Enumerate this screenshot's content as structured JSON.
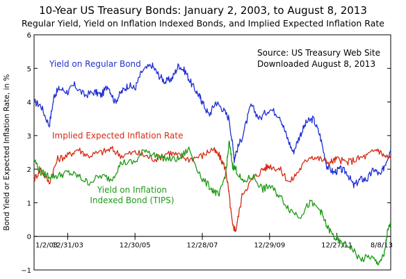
{
  "chart_data": {
    "type": "line",
    "title": "10-Year US Treasury Bonds:  January 2, 2003, to August 8, 2013",
    "subtitle": "Regular Yield, Yield on Inflation Indexed Bonds, and Implied Expected Inflation Rate",
    "ylabel": "Bond Yield or Expected Inflation Rate, in %",
    "xlabel": "",
    "ylim": [
      -1,
      6
    ],
    "yticks": [
      -1,
      0,
      1,
      2,
      3,
      4,
      5,
      6
    ],
    "x_tick_labels": [
      "1/2/03",
      "12/31/03",
      "12/30/05",
      "12/28/07",
      "12/29/09",
      "12/27/11",
      "8/8/13"
    ],
    "x_tick_years": [
      2003.0,
      2004.0,
      2006.0,
      2008.0,
      2010.0,
      2012.0,
      2013.6
    ],
    "xlim": [
      2003.0,
      2013.6
    ],
    "grid": false,
    "source_note": [
      "Source:  US Treasury Web Site",
      "Downloaded August 8, 2013"
    ],
    "series": [
      {
        "name": "Yield on Regular Bond",
        "label_lines": [
          "Yield on Regular Bond"
        ],
        "color": "#1f2fd0",
        "x": [
          2003.0,
          2003.2,
          2003.45,
          2003.6,
          2003.75,
          2004.0,
          2004.2,
          2004.5,
          2004.8,
          2005.0,
          2005.2,
          2005.4,
          2005.6,
          2005.8,
          2006.0,
          2006.2,
          2006.5,
          2006.7,
          2006.9,
          2007.1,
          2007.3,
          2007.5,
          2007.7,
          2007.9,
          2008.0,
          2008.2,
          2008.4,
          2008.6,
          2008.8,
          2008.95,
          2009.0,
          2009.2,
          2009.45,
          2009.7,
          2010.0,
          2010.3,
          2010.5,
          2010.7,
          2010.9,
          2011.1,
          2011.3,
          2011.5,
          2011.7,
          2011.9,
          2012.1,
          2012.3,
          2012.5,
          2012.7,
          2012.9,
          2013.1,
          2013.3,
          2013.45,
          2013.6
        ],
        "values": [
          4.0,
          3.9,
          3.3,
          4.2,
          4.4,
          4.3,
          4.5,
          4.2,
          4.3,
          4.2,
          4.5,
          4.0,
          4.3,
          4.5,
          4.4,
          4.9,
          5.1,
          4.8,
          4.6,
          4.7,
          5.1,
          4.9,
          4.5,
          4.2,
          4.0,
          3.6,
          4.0,
          3.8,
          3.5,
          2.3,
          2.5,
          3.0,
          3.9,
          3.5,
          3.8,
          3.6,
          3.0,
          2.5,
          3.0,
          3.4,
          3.5,
          3.0,
          2.1,
          1.9,
          2.0,
          1.9,
          1.5,
          1.7,
          1.7,
          2.0,
          1.8,
          2.2,
          2.6
        ]
      },
      {
        "name": "Implied Expected Inflation Rate",
        "label_lines": [
          "Implied Expected Inflation Rate"
        ],
        "color": "#d42a14",
        "x": [
          2003.0,
          2003.2,
          2003.45,
          2003.7,
          2004.0,
          2004.3,
          2004.6,
          2005.0,
          2005.3,
          2005.6,
          2006.0,
          2006.3,
          2006.6,
          2007.0,
          2007.3,
          2007.6,
          2008.0,
          2008.3,
          2008.5,
          2008.7,
          2008.8,
          2008.9,
          2009.0,
          2009.2,
          2009.5,
          2009.8,
          2010.0,
          2010.3,
          2010.6,
          2010.9,
          2011.2,
          2011.5,
          2011.8,
          2012.0,
          2012.3,
          2012.6,
          2012.9,
          2013.2,
          2013.4,
          2013.6
        ],
        "values": [
          1.7,
          2.0,
          1.6,
          2.3,
          2.4,
          2.6,
          2.4,
          2.5,
          2.6,
          2.4,
          2.5,
          2.4,
          2.3,
          2.5,
          2.4,
          2.3,
          2.4,
          2.6,
          2.4,
          2.0,
          1.2,
          0.3,
          0.2,
          1.3,
          1.7,
          2.0,
          2.1,
          2.0,
          1.6,
          2.0,
          2.4,
          2.3,
          2.2,
          2.3,
          2.2,
          2.3,
          2.4,
          2.6,
          2.4,
          2.3
        ]
      },
      {
        "name": "Yield on Inflation Indexed Bond (TIPS)",
        "label_lines": [
          "Yield on Inflation",
          "Indexed Bond (TIPS)"
        ],
        "color": "#1f9a16",
        "x": [
          2003.0,
          2003.2,
          2003.45,
          2003.7,
          2004.0,
          2004.3,
          2004.6,
          2005.0,
          2005.3,
          2005.6,
          2006.0,
          2006.3,
          2006.6,
          2007.0,
          2007.3,
          2007.6,
          2008.0,
          2008.3,
          2008.5,
          2008.7,
          2008.8,
          2008.9,
          2009.0,
          2009.2,
          2009.5,
          2009.8,
          2010.0,
          2010.3,
          2010.6,
          2010.9,
          2011.2,
          2011.5,
          2011.7,
          2011.9,
          2012.1,
          2012.4,
          2012.7,
          2013.0,
          2013.2,
          2013.4,
          2013.5,
          2013.6
        ],
        "values": [
          2.3,
          1.9,
          1.8,
          1.8,
          1.9,
          1.8,
          1.6,
          1.8,
          1.7,
          2.2,
          2.2,
          2.6,
          2.4,
          2.3,
          2.3,
          2.6,
          1.7,
          1.4,
          1.2,
          1.9,
          2.8,
          2.1,
          2.0,
          1.6,
          1.8,
          1.4,
          1.5,
          1.2,
          0.8,
          0.6,
          1.0,
          0.8,
          0.3,
          0.0,
          -0.2,
          -0.3,
          -0.7,
          -0.6,
          -0.8,
          -0.6,
          0.1,
          0.4
        ]
      }
    ]
  }
}
